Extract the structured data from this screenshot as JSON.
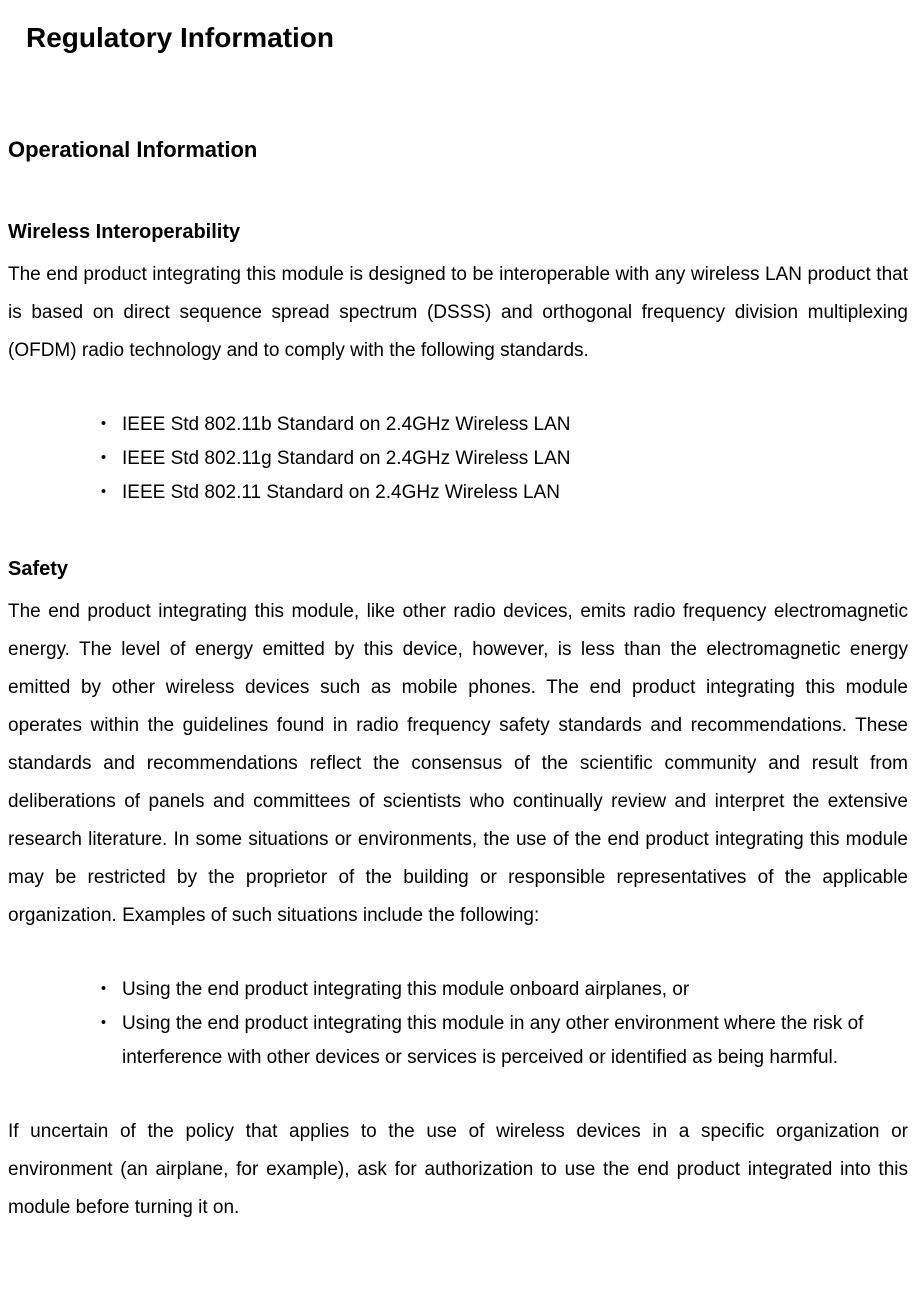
{
  "mainTitle": "Regulatory Information",
  "section1": {
    "title": "Operational Information"
  },
  "wireless": {
    "title": "Wireless Interoperability",
    "body": "The end product integrating this module is designed to be interoperable with any wireless LAN product that is based on direct sequence spread spectrum (DSSS) and orthogonal frequency division multiplexing (OFDM) radio technology and to comply with the following standards.",
    "bullets": [
      "IEEE Std 802.11b Standard on 2.4GHz Wireless LAN",
      "IEEE Std 802.11g Standard on 2.4GHz Wireless LAN",
      "IEEE Std 802.11 Standard on 2.4GHz Wireless LAN"
    ]
  },
  "safety": {
    "title": "Safety",
    "body": "The end product integrating this module, like other radio devices, emits radio frequency electromagnetic energy. The level of energy emitted by this device, however, is less than the electromagnetic energy emitted by other wireless devices such as mobile phones. The end product integrating this module operates within the guidelines found in radio frequency safety standards and recommendations. These standards and recommendations reflect the consensus of the scientific community and result from deliberations of panels and committees of scientists who continually review and interpret the extensive research literature. In some situations or environments, the use of the end product integrating this module may be restricted by the proprietor of the building or responsible representatives of the applicable organization. Examples of such situations include the following:",
    "bullets": [
      "Using the end product integrating this module onboard airplanes, or",
      "Using the end product integrating this module in any other environment where the risk of interference with other devices or services is perceived or identified as being harmful."
    ],
    "footer": "If uncertain of the policy that applies to the use of wireless devices in a specific organization or environment (an airplane, for example), ask for authorization to use the end product integrated into this module before turning it on."
  },
  "bulletMarker": "・"
}
